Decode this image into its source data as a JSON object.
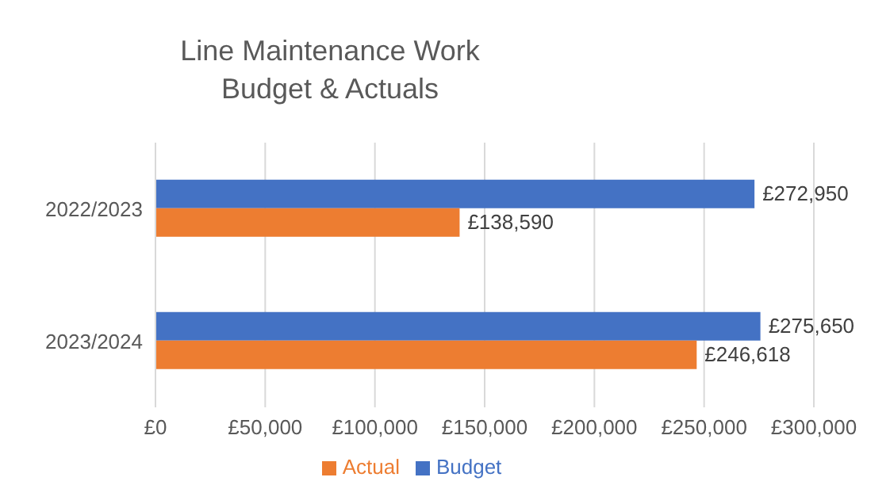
{
  "chart_data": {
    "type": "bar",
    "orientation": "horizontal",
    "title": "Line Maintenance Work\nBudget & Actuals",
    "categories": [
      "2022/2023",
      "2023/2024"
    ],
    "series": [
      {
        "name": "Budget",
        "color": "#4472c4",
        "values": [
          272950,
          275650
        ],
        "value_labels": [
          "£272,950",
          "£275,650"
        ]
      },
      {
        "name": "Actual",
        "color": "#ed7d31",
        "values": [
          138590,
          246618
        ],
        "value_labels": [
          "£138,590",
          "£246,618"
        ]
      }
    ],
    "xlim": [
      0,
      300000
    ],
    "xticks": [
      {
        "value": 0,
        "label": "£0"
      },
      {
        "value": 50000,
        "label": "£50,000"
      },
      {
        "value": 100000,
        "label": "£100,000"
      },
      {
        "value": 150000,
        "label": "£150,000"
      },
      {
        "value": 200000,
        "label": "£200,000"
      },
      {
        "value": 250000,
        "label": "£250,000"
      },
      {
        "value": 300000,
        "label": "£300,000"
      }
    ],
    "grid": "x",
    "legend": "bottom"
  }
}
